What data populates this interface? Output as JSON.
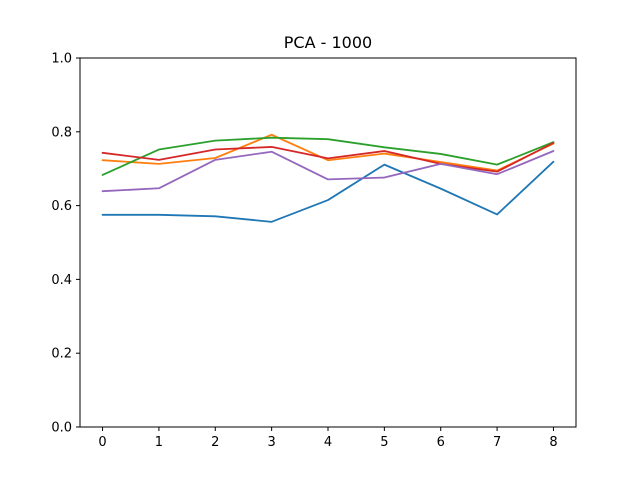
{
  "chart_data": {
    "type": "line",
    "title": "PCA - 1000",
    "xlabel": "",
    "ylabel": "",
    "x": [
      0,
      1,
      2,
      3,
      4,
      5,
      6,
      7,
      8
    ],
    "xticks": [
      "0",
      "1",
      "2",
      "3",
      "4",
      "5",
      "6",
      "7",
      "8"
    ],
    "yticks": [
      "0.0",
      "0.2",
      "0.4",
      "0.6",
      "0.8",
      "1.0"
    ],
    "xlim": [
      -0.4,
      8.4
    ],
    "ylim": [
      0.0,
      1.0
    ],
    "grid": false,
    "series": [
      {
        "color": "#1f77b4",
        "values": [
          0.575,
          0.575,
          0.571,
          0.556,
          0.615,
          0.711,
          0.646,
          0.576,
          0.719
        ]
      },
      {
        "color": "#ff7f0e",
        "values": [
          0.723,
          0.713,
          0.729,
          0.792,
          0.723,
          0.741,
          0.718,
          0.695,
          0.768
        ]
      },
      {
        "color": "#2ca02c",
        "values": [
          0.683,
          0.752,
          0.776,
          0.784,
          0.78,
          0.758,
          0.74,
          0.711,
          0.772
        ]
      },
      {
        "color": "#d62728",
        "values": [
          0.743,
          0.724,
          0.752,
          0.759,
          0.728,
          0.748,
          0.713,
          0.692,
          0.77
        ]
      },
      {
        "color": "#9467bd",
        "values": [
          0.639,
          0.647,
          0.724,
          0.746,
          0.671,
          0.676,
          0.713,
          0.685,
          0.748
        ]
      }
    ]
  }
}
